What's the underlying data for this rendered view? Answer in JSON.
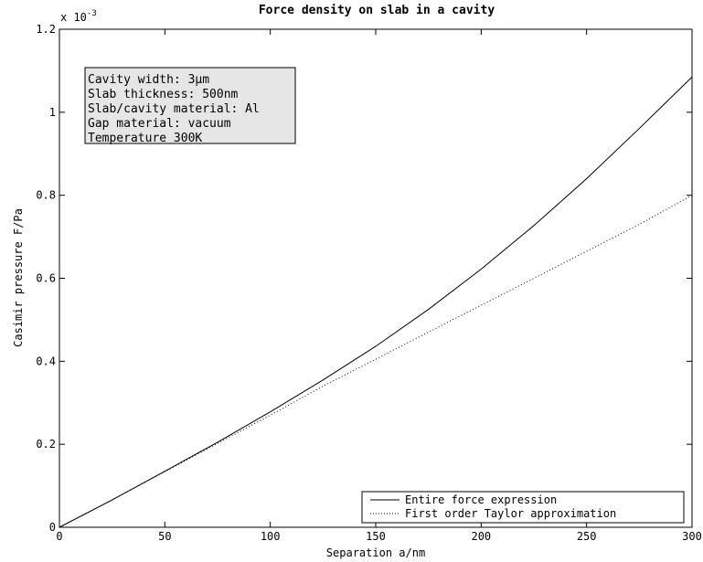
{
  "chart_data": {
    "type": "line",
    "title": "Force density on slab in a cavity",
    "xlabel": "Separation a/nm",
    "ylabel": "Casimir pressure F/Pa",
    "y_multiplier": "x 10",
    "y_exponent": "-3",
    "xlim": [
      0,
      300
    ],
    "ylim": [
      0,
      1.2
    ],
    "x_ticks": [
      "0",
      "50",
      "100",
      "150",
      "200",
      "250",
      "300"
    ],
    "y_ticks": [
      "0",
      "0.2",
      "0.4",
      "0.6",
      "0.8",
      "1",
      "1.2"
    ],
    "grid": false,
    "legend_position": "bottom-right",
    "info_box": [
      "Cavity width: 3μm",
      "Slab thickness: 500nm",
      "Slab/cavity material: Al",
      "Gap material: vacuum",
      "Temperature 300K"
    ],
    "series": [
      {
        "name": "Entire force expression",
        "style": "solid",
        "x": [
          0,
          25,
          50,
          75,
          100,
          125,
          150,
          175,
          200,
          225,
          250,
          275,
          300
        ],
        "y": [
          0,
          0.066,
          0.135,
          0.205,
          0.278,
          0.355,
          0.436,
          0.525,
          0.622,
          0.727,
          0.84,
          0.961,
          1.085
        ]
      },
      {
        "name": "First order Taylor approximation",
        "style": "dotted",
        "x": [
          0,
          25,
          50,
          75,
          100,
          125,
          150,
          175,
          200,
          225,
          250,
          275,
          300
        ],
        "y": [
          0,
          0.066,
          0.134,
          0.202,
          0.27,
          0.34,
          0.405,
          0.47,
          0.535,
          0.6,
          0.665,
          0.73,
          0.8
        ]
      }
    ]
  }
}
